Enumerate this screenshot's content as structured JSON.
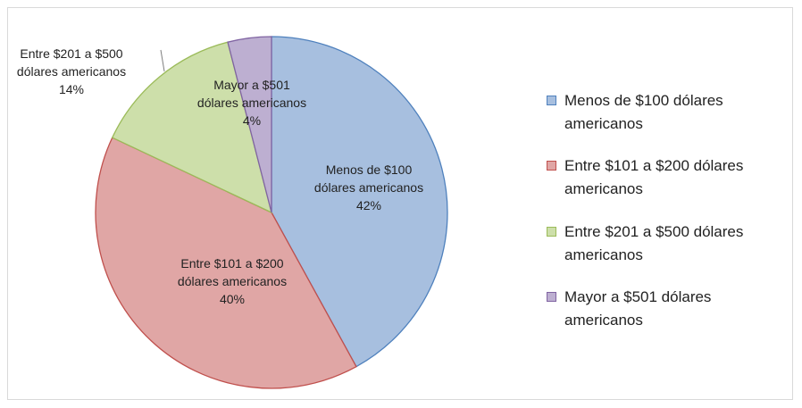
{
  "chart_data": {
    "type": "pie",
    "categories": [
      "Menos de $100 dólares americanos",
      "Entre $101 a $200 dólares americanos",
      "Entre $201 a $500 dólares americanos",
      "Mayor a $501 dólares americanos"
    ],
    "values": [
      42,
      40,
      14,
      4
    ],
    "value_labels": [
      "42%",
      "40%",
      "14%",
      "4%"
    ],
    "colors": [
      "#a7bfdf",
      "#e0a6a5",
      "#cddfaa",
      "#bdafd1"
    ],
    "edge_colors": [
      "#4f81bd",
      "#c0504d",
      "#9bbb59",
      "#8064a2"
    ],
    "legend": "right"
  }
}
